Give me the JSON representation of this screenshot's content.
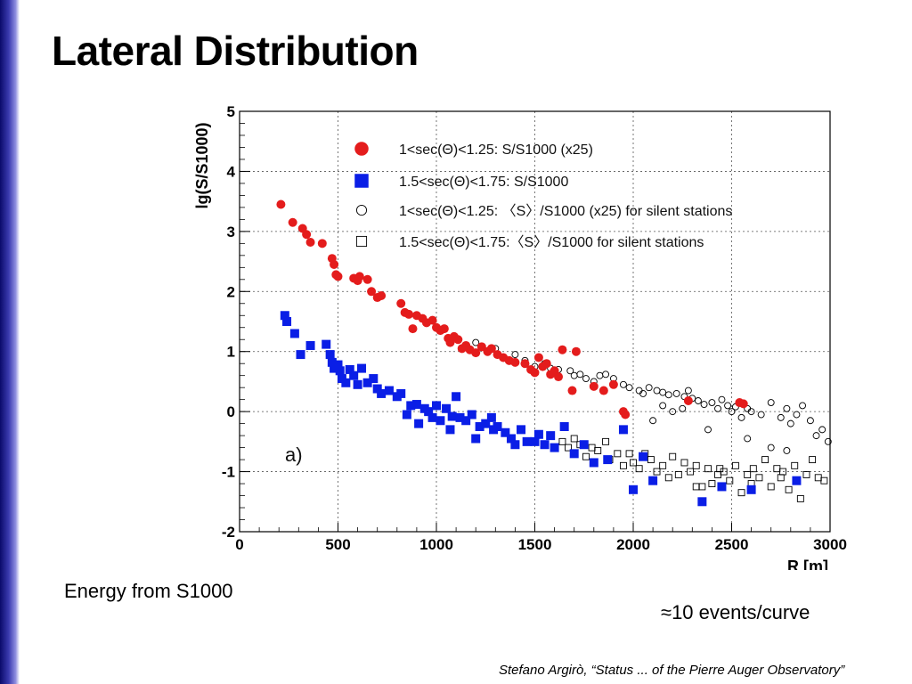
{
  "slide": {
    "title": "Lateral Distribution",
    "note_left": "Energy from S1000",
    "note_right": "≈10 events/curve",
    "footer": "Stefano Argirò, “Status ... of the Pierre Auger Observatory”"
  },
  "colors": {
    "sidebar": "#1a1a8a",
    "series_red": "#e41c1c",
    "series_blue": "#0a1ee6",
    "open_markers": "#000000",
    "grid": "#555555"
  },
  "chart_data": {
    "type": "scatter",
    "xlabel": "R [m]",
    "ylabel": "lg(S/S1000)",
    "xlim": [
      0,
      3000
    ],
    "ylim": [
      -2,
      5
    ],
    "x_ticks": [
      "0",
      "500",
      "1000",
      "1500",
      "2000",
      "2500",
      "3000"
    ],
    "y_ticks": [
      "-2",
      "-1",
      "0",
      "1",
      "2",
      "3",
      "4",
      "5"
    ],
    "grid": true,
    "legend_position": "top-right",
    "panel_label": "a)",
    "series": [
      {
        "name": "1<sec(Θ)<1.25:   S/S1000 (x25)",
        "marker": "filled-circle",
        "color": "#e41c1c",
        "points": [
          [
            210,
            3.45
          ],
          [
            270,
            3.15
          ],
          [
            320,
            3.05
          ],
          [
            340,
            2.95
          ],
          [
            360,
            2.82
          ],
          [
            420,
            2.8
          ],
          [
            470,
            2.55
          ],
          [
            480,
            2.45
          ],
          [
            490,
            2.28
          ],
          [
            500,
            2.25
          ],
          [
            580,
            2.22
          ],
          [
            600,
            2.18
          ],
          [
            610,
            2.25
          ],
          [
            650,
            2.2
          ],
          [
            670,
            2.0
          ],
          [
            700,
            1.9
          ],
          [
            720,
            1.93
          ],
          [
            820,
            1.8
          ],
          [
            840,
            1.65
          ],
          [
            860,
            1.62
          ],
          [
            880,
            1.38
          ],
          [
            900,
            1.6
          ],
          [
            930,
            1.55
          ],
          [
            950,
            1.48
          ],
          [
            980,
            1.52
          ],
          [
            1000,
            1.4
          ],
          [
            1020,
            1.35
          ],
          [
            1040,
            1.38
          ],
          [
            1060,
            1.22
          ],
          [
            1070,
            1.15
          ],
          [
            1090,
            1.25
          ],
          [
            1110,
            1.2
          ],
          [
            1130,
            1.05
          ],
          [
            1150,
            1.1
          ],
          [
            1170,
            1.03
          ],
          [
            1200,
            0.98
          ],
          [
            1230,
            1.08
          ],
          [
            1260,
            1.0
          ],
          [
            1280,
            1.05
          ],
          [
            1310,
            0.95
          ],
          [
            1340,
            0.9
          ],
          [
            1370,
            0.85
          ],
          [
            1400,
            0.82
          ],
          [
            1450,
            0.8
          ],
          [
            1480,
            0.7
          ],
          [
            1500,
            0.65
          ],
          [
            1520,
            0.9
          ],
          [
            1540,
            0.75
          ],
          [
            1560,
            0.8
          ],
          [
            1580,
            0.62
          ],
          [
            1600,
            0.68
          ],
          [
            1620,
            0.58
          ],
          [
            1640,
            1.03
          ],
          [
            1690,
            0.35
          ],
          [
            1710,
            1.0
          ],
          [
            1800,
            0.42
          ],
          [
            1850,
            0.35
          ],
          [
            1900,
            0.45
          ],
          [
            1950,
            0.0
          ],
          [
            1960,
            -0.05
          ],
          [
            2280,
            0.18
          ],
          [
            2540,
            0.15
          ],
          [
            2560,
            0.13
          ]
        ]
      },
      {
        "name": "1.5<sec(Θ)<1.75: S/S1000",
        "marker": "filled-square",
        "color": "#0a1ee6",
        "points": [
          [
            230,
            1.6
          ],
          [
            240,
            1.5
          ],
          [
            280,
            1.3
          ],
          [
            310,
            0.95
          ],
          [
            360,
            1.1
          ],
          [
            440,
            1.12
          ],
          [
            460,
            0.95
          ],
          [
            470,
            0.82
          ],
          [
            480,
            0.72
          ],
          [
            500,
            0.78
          ],
          [
            510,
            0.68
          ],
          [
            520,
            0.55
          ],
          [
            540,
            0.48
          ],
          [
            560,
            0.7
          ],
          [
            580,
            0.6
          ],
          [
            600,
            0.45
          ],
          [
            620,
            0.72
          ],
          [
            650,
            0.48
          ],
          [
            680,
            0.55
          ],
          [
            700,
            0.38
          ],
          [
            720,
            0.3
          ],
          [
            760,
            0.35
          ],
          [
            800,
            0.25
          ],
          [
            820,
            0.3
          ],
          [
            850,
            -0.05
          ],
          [
            870,
            0.1
          ],
          [
            900,
            0.12
          ],
          [
            910,
            -0.2
          ],
          [
            940,
            0.05
          ],
          [
            960,
            0.0
          ],
          [
            980,
            -0.1
          ],
          [
            1000,
            0.1
          ],
          [
            1020,
            -0.15
          ],
          [
            1050,
            0.05
          ],
          [
            1070,
            -0.3
          ],
          [
            1080,
            -0.08
          ],
          [
            1100,
            0.25
          ],
          [
            1120,
            -0.1
          ],
          [
            1150,
            -0.15
          ],
          [
            1180,
            -0.05
          ],
          [
            1200,
            -0.45
          ],
          [
            1220,
            -0.25
          ],
          [
            1250,
            -0.2
          ],
          [
            1280,
            -0.1
          ],
          [
            1290,
            -0.3
          ],
          [
            1310,
            -0.25
          ],
          [
            1350,
            -0.35
          ],
          [
            1380,
            -0.45
          ],
          [
            1400,
            -0.55
          ],
          [
            1430,
            -0.3
          ],
          [
            1460,
            -0.5
          ],
          [
            1500,
            -0.5
          ],
          [
            1520,
            -0.38
          ],
          [
            1550,
            -0.55
          ],
          [
            1580,
            -0.4
          ],
          [
            1600,
            -0.6
          ],
          [
            1650,
            -0.25
          ],
          [
            1700,
            -0.7
          ],
          [
            1750,
            -0.55
          ],
          [
            1800,
            -0.85
          ],
          [
            1870,
            -0.8
          ],
          [
            1950,
            -0.3
          ],
          [
            2000,
            -1.3
          ],
          [
            2050,
            -0.75
          ],
          [
            2100,
            -1.15
          ],
          [
            2350,
            -1.5
          ],
          [
            2450,
            -1.25
          ],
          [
            2600,
            -1.3
          ],
          [
            2830,
            -1.15
          ]
        ]
      },
      {
        "name": "1<sec(Θ)<1.25:  〈S〉/S1000 (x25) for silent stations",
        "marker": "open-circle",
        "color": "#000000",
        "points": [
          [
            1200,
            1.15
          ],
          [
            1300,
            1.05
          ],
          [
            1400,
            0.95
          ],
          [
            1450,
            0.85
          ],
          [
            1500,
            0.75
          ],
          [
            1550,
            0.8
          ],
          [
            1580,
            0.72
          ],
          [
            1620,
            0.7
          ],
          [
            1680,
            0.68
          ],
          [
            1700,
            0.6
          ],
          [
            1730,
            0.62
          ],
          [
            1760,
            0.55
          ],
          [
            1800,
            0.5
          ],
          [
            1830,
            0.6
          ],
          [
            1860,
            0.62
          ],
          [
            1900,
            0.55
          ],
          [
            1950,
            0.45
          ],
          [
            1980,
            0.4
          ],
          [
            2030,
            0.35
          ],
          [
            2050,
            0.3
          ],
          [
            2080,
            0.4
          ],
          [
            2120,
            0.35
          ],
          [
            2150,
            0.32
          ],
          [
            2180,
            0.28
          ],
          [
            2220,
            0.3
          ],
          [
            2260,
            0.25
          ],
          [
            2280,
            0.35
          ],
          [
            2300,
            0.22
          ],
          [
            2330,
            0.18
          ],
          [
            2360,
            0.12
          ],
          [
            2400,
            0.15
          ],
          [
            2430,
            0.05
          ],
          [
            2450,
            0.2
          ],
          [
            2480,
            0.1
          ],
          [
            2500,
            0.0
          ],
          [
            2520,
            0.08
          ],
          [
            2550,
            -0.1
          ],
          [
            2580,
            0.05
          ],
          [
            2600,
            0.0
          ],
          [
            2650,
            -0.05
          ],
          [
            2700,
            0.15
          ],
          [
            2750,
            -0.1
          ],
          [
            2780,
            0.05
          ],
          [
            2800,
            -0.2
          ],
          [
            2830,
            -0.05
          ],
          [
            2860,
            0.1
          ],
          [
            2900,
            -0.15
          ],
          [
            2930,
            -0.4
          ],
          [
            2960,
            -0.3
          ],
          [
            2990,
            -0.5
          ],
          [
            2150,
            0.1
          ],
          [
            2250,
            0.05
          ],
          [
            2380,
            -0.3
          ],
          [
            2580,
            -0.45
          ],
          [
            2700,
            -0.6
          ],
          [
            2780,
            -0.65
          ],
          [
            2100,
            -0.15
          ],
          [
            2200,
            0.0
          ]
        ]
      },
      {
        "name": "1.5<sec(Θ)<1.75:〈S〉/S1000 for silent stations",
        "marker": "open-square",
        "color": "#000000",
        "points": [
          [
            1640,
            -0.5
          ],
          [
            1670,
            -0.6
          ],
          [
            1700,
            -0.45
          ],
          [
            1730,
            -0.55
          ],
          [
            1760,
            -0.75
          ],
          [
            1790,
            -0.6
          ],
          [
            1820,
            -0.65
          ],
          [
            1860,
            -0.5
          ],
          [
            1880,
            -0.8
          ],
          [
            1920,
            -0.7
          ],
          [
            1950,
            -0.9
          ],
          [
            1980,
            -0.7
          ],
          [
            2000,
            -0.85
          ],
          [
            2030,
            -0.95
          ],
          [
            2060,
            -0.7
          ],
          [
            2090,
            -0.8
          ],
          [
            2120,
            -1.0
          ],
          [
            2150,
            -0.9
          ],
          [
            2180,
            -1.1
          ],
          [
            2200,
            -0.75
          ],
          [
            2230,
            -1.05
          ],
          [
            2260,
            -0.85
          ],
          [
            2290,
            -1.0
          ],
          [
            2320,
            -0.9
          ],
          [
            2350,
            -1.25
          ],
          [
            2380,
            -0.95
          ],
          [
            2400,
            -1.2
          ],
          [
            2430,
            -1.05
          ],
          [
            2460,
            -1.0
          ],
          [
            2490,
            -1.15
          ],
          [
            2520,
            -0.9
          ],
          [
            2550,
            -1.35
          ],
          [
            2580,
            -1.05
          ],
          [
            2610,
            -0.95
          ],
          [
            2640,
            -1.1
          ],
          [
            2670,
            -0.8
          ],
          [
            2700,
            -1.25
          ],
          [
            2730,
            -0.95
          ],
          [
            2760,
            -1.0
          ],
          [
            2790,
            -1.3
          ],
          [
            2820,
            -0.9
          ],
          [
            2850,
            -1.45
          ],
          [
            2880,
            -1.05
          ],
          [
            2910,
            -0.8
          ],
          [
            2940,
            -1.1
          ],
          [
            2970,
            -1.15
          ],
          [
            2440,
            -0.95
          ],
          [
            2600,
            -1.2
          ],
          [
            2750,
            -1.1
          ],
          [
            2320,
            -1.25
          ]
        ]
      }
    ]
  }
}
